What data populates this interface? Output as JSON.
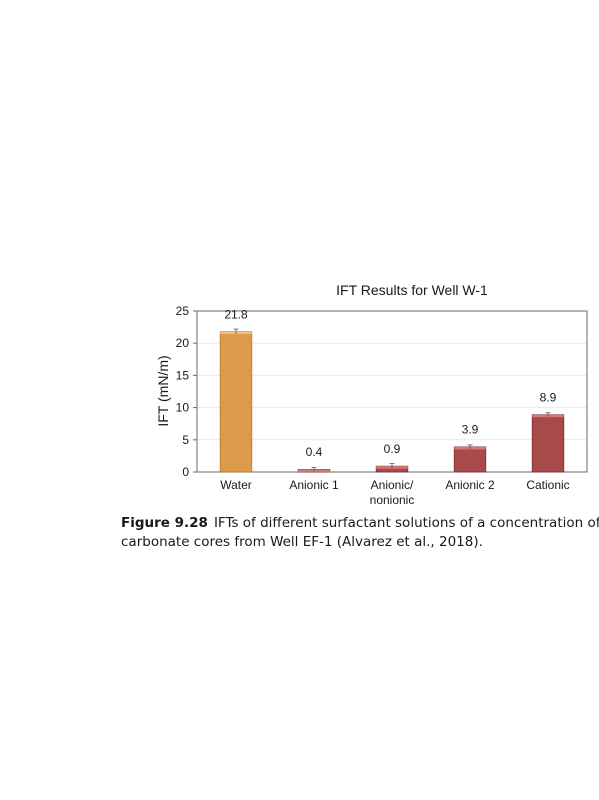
{
  "chart_data": {
    "type": "bar",
    "title": "IFT Results for Well W-1",
    "ylabel": "IFT (mN/m)",
    "xlabel": "",
    "ylim": [
      0,
      25
    ],
    "yticks": [
      "0",
      "5",
      "10",
      "15",
      "20",
      "25"
    ],
    "grid": true,
    "categories": [
      [
        "Water"
      ],
      [
        "Anionic 1"
      ],
      [
        "Anionic/",
        "nonionic"
      ],
      [
        "Anionic 2"
      ],
      [
        "Cationic"
      ]
    ],
    "values": [
      21.8,
      0.4,
      0.9,
      3.9,
      8.9
    ],
    "errors": [
      0.4,
      0.3,
      0.4,
      0.3,
      0.3
    ],
    "value_labels": [
      "21.8",
      "0.4",
      "0.9",
      "3.9",
      "8.9"
    ],
    "colors": [
      "#dd9a4a",
      "#a84a4a",
      "#a84a4a",
      "#a84a4a",
      "#a84a4a"
    ],
    "highlight_colors": [
      "#efc47a",
      "#cf7b7b",
      "#cf7b7b",
      "#cf7b7b",
      "#cf7b7b"
    ],
    "edge_colors": [
      "#b9772e",
      "#7f2e2e",
      "#7f2e2e",
      "#7f2e2e",
      "#7f2e2e"
    ]
  },
  "caption": {
    "label": "Figure 9.28",
    "line1": "IFTs of different surfactant solutions of a concentration of",
    "line2": "carbonate cores from Well EF-1 (Alvarez et al., 2018)."
  }
}
